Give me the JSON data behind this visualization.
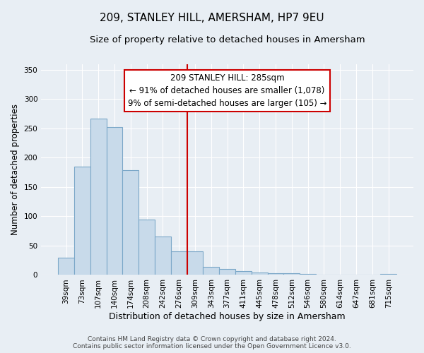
{
  "title": "209, STANLEY HILL, AMERSHAM, HP7 9EU",
  "subtitle": "Size of property relative to detached houses in Amersham",
  "xlabel": "Distribution of detached houses by size in Amersham",
  "ylabel": "Number of detached properties",
  "bar_labels": [
    "39sqm",
    "73sqm",
    "107sqm",
    "140sqm",
    "174sqm",
    "208sqm",
    "242sqm",
    "276sqm",
    "309sqm",
    "343sqm",
    "377sqm",
    "411sqm",
    "445sqm",
    "478sqm",
    "512sqm",
    "546sqm",
    "580sqm",
    "614sqm",
    "647sqm",
    "681sqm",
    "715sqm"
  ],
  "bar_values": [
    30,
    185,
    267,
    252,
    179,
    94,
    65,
    40,
    40,
    14,
    10,
    6,
    4,
    3,
    3,
    2,
    0,
    0,
    0,
    0,
    2
  ],
  "bar_color": "#c8daea",
  "bar_edge_color": "#7ba7c8",
  "vline_x": 7.5,
  "vline_color": "#cc0000",
  "annotation_title": "209 STANLEY HILL: 285sqm",
  "annotation_line1": "← 91% of detached houses are smaller (1,078)",
  "annotation_line2": "9% of semi-detached houses are larger (105) →",
  "annotation_box_facecolor": "#ffffff",
  "annotation_box_edgecolor": "#cc0000",
  "ylim": [
    0,
    360
  ],
  "yticks": [
    0,
    50,
    100,
    150,
    200,
    250,
    300,
    350
  ],
  "footer1": "Contains HM Land Registry data © Crown copyright and database right 2024.",
  "footer2": "Contains public sector information licensed under the Open Government Licence v3.0.",
  "background_color": "#e8eef4",
  "plot_bg_color": "#e8eef4",
  "grid_color": "#ffffff",
  "title_fontsize": 11,
  "subtitle_fontsize": 9.5,
  "xlabel_fontsize": 9,
  "ylabel_fontsize": 8.5,
  "tick_fontsize": 7.5,
  "annotation_fontsize": 8.5,
  "footer_fontsize": 6.5
}
